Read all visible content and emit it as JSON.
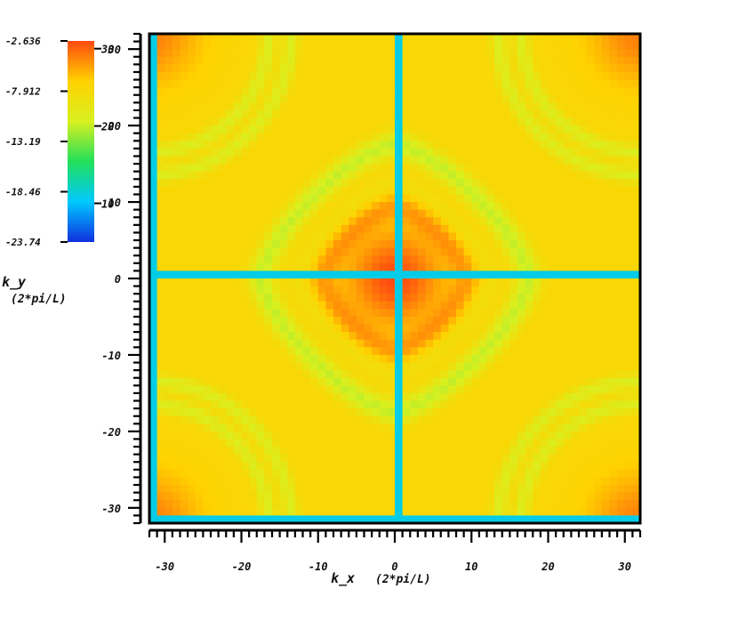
{
  "chart_data": {
    "type": "heatmap",
    "title": "",
    "xlabel": "k_x",
    "xlabel_unit": "(2*pi/L)",
    "ylabel": "k_y",
    "ylabel_unit": "(2*pi/L)",
    "xlim": [
      -32,
      32
    ],
    "ylim": [
      -32,
      32
    ],
    "x_ticks": [
      "-30",
      "-20",
      "-10",
      "0",
      "10",
      "20",
      "30"
    ],
    "y_ticks": [
      "30",
      "20",
      "10",
      "0",
      "-10",
      "-20",
      "-30"
    ],
    "grid": false,
    "resolution": 64,
    "colorbar": {
      "range": [
        5,
        31
      ],
      "tick_labels": [
        "30",
        "20",
        "10"
      ],
      "side_values": [
        "-2.636",
        "-7.912",
        "-13.19",
        "-18.46",
        "-23.74"
      ],
      "colormap": [
        "#1030e0",
        "#00c8ff",
        "#22e05a",
        "#d8f020",
        "#ffd200",
        "#ff4a10"
      ]
    },
    "features": {
      "center_peak": 31,
      "background": 25,
      "main_ring": {
        "radius": 17.5,
        "value": 20,
        "shape": "rounded diamond"
      },
      "corner_peaks": 29,
      "corner_rings": {
        "radii": [
          15.5,
          18.5
        ],
        "value": 20
      },
      "axis_lines": {
        "at": 0,
        "value": 11
      },
      "edge_lines": {
        "at": -32,
        "value": 11
      }
    }
  }
}
